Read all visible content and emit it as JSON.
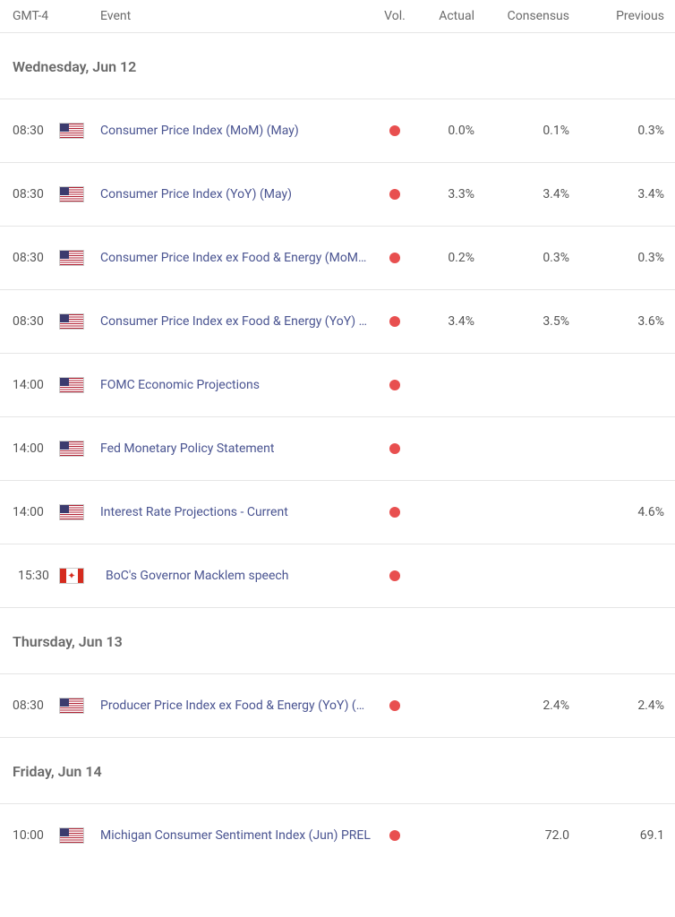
{
  "columns": {
    "time": "GMT-4",
    "event": "Event",
    "vol": "Vol.",
    "actual": "Actual",
    "consensus": "Consensus",
    "previous": "Previous"
  },
  "colors": {
    "vol_dot": "#e84f4f",
    "event_link": "#4a5491",
    "text": "#555555",
    "border": "#e5e5e5"
  },
  "sections": [
    {
      "date": "Wednesday, Jun 12",
      "rows": [
        {
          "time": "08:30",
          "flag": "us",
          "event": "Consumer Price Index (MoM) (May)",
          "vol": "high",
          "actual": "0.0%",
          "consensus": "0.1%",
          "previous": "0.3%"
        },
        {
          "time": "08:30",
          "flag": "us",
          "event": "Consumer Price Index (YoY) (May)",
          "vol": "high",
          "actual": "3.3%",
          "consensus": "3.4%",
          "previous": "3.4%"
        },
        {
          "time": "08:30",
          "flag": "us",
          "event": "Consumer Price Index ex Food & Energy (MoM) (May)",
          "vol": "high",
          "actual": "0.2%",
          "consensus": "0.3%",
          "previous": "0.3%"
        },
        {
          "time": "08:30",
          "flag": "us",
          "event": "Consumer Price Index ex Food & Energy (YoY) (May)",
          "vol": "high",
          "actual": "3.4%",
          "consensus": "3.5%",
          "previous": "3.6%"
        },
        {
          "time": "14:00",
          "flag": "us",
          "event": "FOMC Economic Projections",
          "vol": "high",
          "actual": "",
          "consensus": "",
          "previous": ""
        },
        {
          "time": "14:00",
          "flag": "us",
          "event": "Fed Monetary Policy Statement",
          "vol": "high",
          "actual": "",
          "consensus": "",
          "previous": ""
        },
        {
          "time": "14:00",
          "flag": "us",
          "event": "Interest Rate Projections - Current",
          "vol": "high",
          "actual": "",
          "consensus": "",
          "previous": "4.6%"
        },
        {
          "time": "15:30",
          "flag": "ca",
          "event": "BoC's Governor Macklem speech",
          "vol": "high",
          "actual": "",
          "consensus": "",
          "previous": ""
        }
      ]
    },
    {
      "date": "Thursday, Jun 13",
      "rows": [
        {
          "time": "08:30",
          "flag": "us",
          "event": "Producer Price Index ex Food & Energy (YoY) (May)",
          "vol": "high",
          "actual": "",
          "consensus": "2.4%",
          "previous": "2.4%"
        }
      ]
    },
    {
      "date": "Friday, Jun 14",
      "rows": [
        {
          "time": "10:00",
          "flag": "us",
          "event": "Michigan Consumer Sentiment Index (Jun) PREL",
          "vol": "high",
          "actual": "",
          "consensus": "72.0",
          "previous": "69.1"
        }
      ]
    }
  ]
}
